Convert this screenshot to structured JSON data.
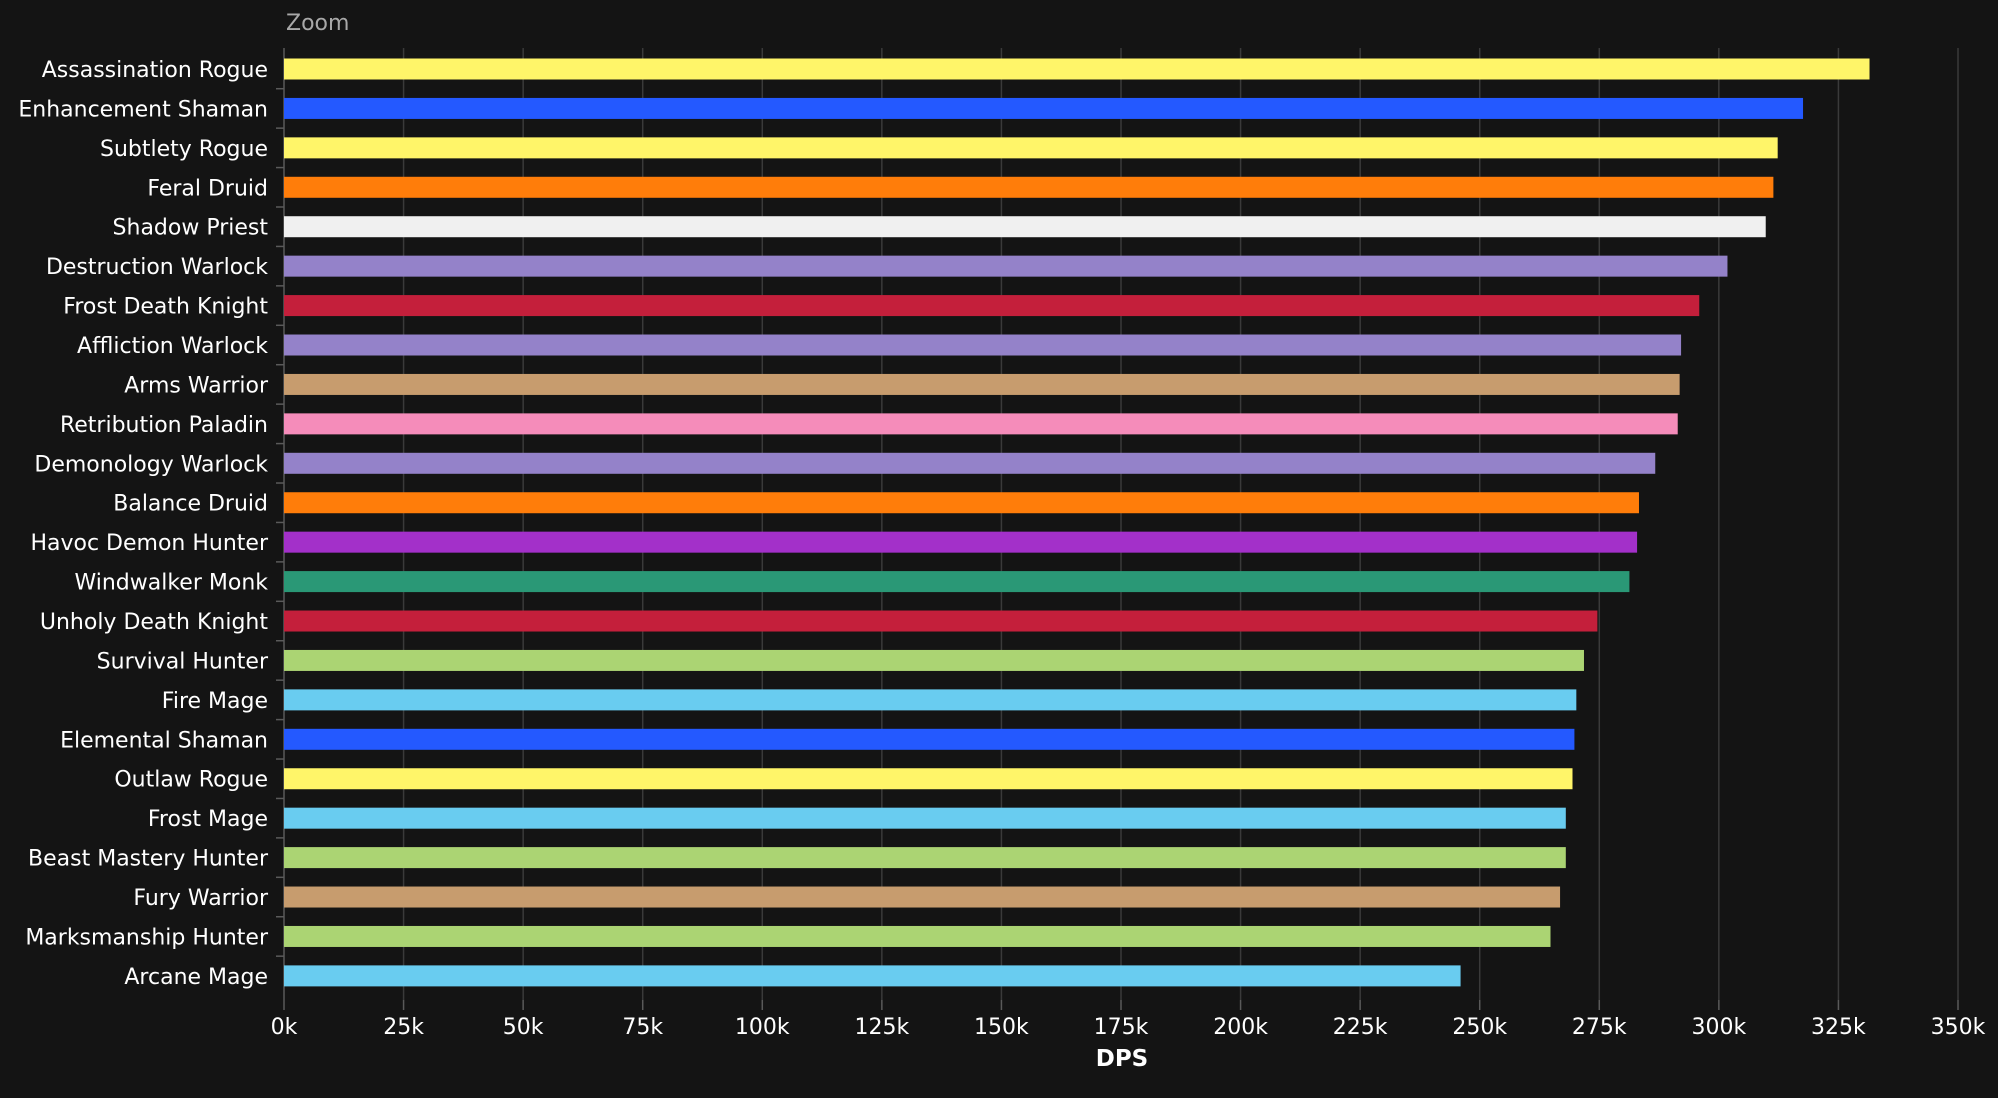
{
  "zoom_button": {
    "label": "Zoom"
  },
  "chart_data": {
    "type": "bar",
    "orientation": "horizontal",
    "xlabel": "DPS",
    "ylabel": "",
    "xlim": [
      0,
      350000
    ],
    "x_ticks": [
      0,
      25000,
      50000,
      75000,
      100000,
      125000,
      150000,
      175000,
      200000,
      225000,
      250000,
      275000,
      300000,
      325000,
      350000
    ],
    "x_tick_labels": [
      "0k",
      "25k",
      "50k",
      "75k",
      "100k",
      "125k",
      "150k",
      "175k",
      "200k",
      "225k",
      "250k",
      "275k",
      "300k",
      "325k",
      "350k"
    ],
    "grid": true,
    "categories": [
      "Assassination Rogue",
      "Enhancement Shaman",
      "Subtlety Rogue",
      "Feral Druid",
      "Shadow Priest",
      "Destruction Warlock",
      "Frost Death Knight",
      "Affliction Warlock",
      "Arms Warrior",
      "Retribution Paladin",
      "Demonology Warlock",
      "Balance Druid",
      "Havoc Demon Hunter",
      "Windwalker Monk",
      "Unholy Death Knight",
      "Survival Hunter",
      "Fire Mage",
      "Elemental Shaman",
      "Outlaw Rogue",
      "Frost Mage",
      "Beast Mastery Hunter",
      "Fury Warrior",
      "Marksmanship Hunter",
      "Arcane Mage"
    ],
    "values": [
      331500,
      317600,
      312300,
      311400,
      309800,
      301800,
      295900,
      292100,
      291800,
      291400,
      286700,
      283300,
      282900,
      281300,
      274600,
      271800,
      270200,
      269800,
      269400,
      268000,
      268000,
      266800,
      264800,
      246000
    ],
    "colors": [
      "#FFF569",
      "#2459FF",
      "#FFF569",
      "#FF7D0A",
      "#F0F0F0",
      "#9482C9",
      "#C41F3B",
      "#9482C9",
      "#C79C6E",
      "#F58CBA",
      "#9482C9",
      "#FF7D0A",
      "#A330C9",
      "#2A9876",
      "#C41F3B",
      "#ABD473",
      "#69CCF0",
      "#2459FF",
      "#FFF569",
      "#69CCF0",
      "#ABD473",
      "#C79C6E",
      "#ABD473",
      "#69CCF0"
    ]
  }
}
